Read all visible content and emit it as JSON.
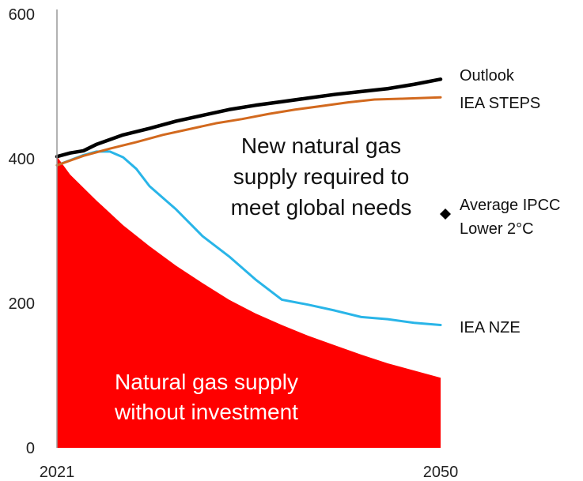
{
  "chart_data": {
    "type": "line",
    "x_range": [
      2021,
      2050
    ],
    "ylim": [
      0,
      600
    ],
    "y_ticks": [
      "0",
      "200",
      "400",
      "600"
    ],
    "x_ticks": [
      "2021",
      "2050"
    ],
    "grid": false,
    "series": [
      {
        "name": "Outlook",
        "color": "#000000",
        "x": [
          2021,
          2022,
          2023,
          2024,
          2026,
          2028,
          2030,
          2032,
          2034,
          2036,
          2038,
          2040,
          2042,
          2044,
          2046,
          2048,
          2050
        ],
        "y": [
          403,
          408,
          411,
          420,
          433,
          442,
          452,
          460,
          468,
          474,
          479,
          484,
          489,
          493,
          497,
          503,
          510
        ]
      },
      {
        "name": "IEA STEPS",
        "color": "#d2691e",
        "x": [
          2021,
          2023,
          2025,
          2027,
          2029,
          2031,
          2033,
          2035,
          2037,
          2039,
          2041,
          2043,
          2045,
          2047,
          2050
        ],
        "y": [
          391,
          404,
          414,
          423,
          433,
          441,
          449,
          455,
          462,
          468,
          473,
          478,
          482,
          483,
          485
        ]
      },
      {
        "name": "IEA NZE",
        "color": "#29b5e8",
        "x": [
          2021,
          2023,
          2024,
          2025,
          2026,
          2027,
          2028,
          2030,
          2032,
          2034,
          2036,
          2038,
          2040,
          2042,
          2044,
          2046,
          2048,
          2050
        ],
        "y": [
          391,
          405,
          410,
          410,
          402,
          386,
          362,
          330,
          293,
          265,
          233,
          205,
          198,
          190,
          181,
          178,
          173,
          170
        ]
      }
    ],
    "area": {
      "label": "Natural gas supply without investment",
      "color": "#ff0000",
      "x": [
        2021,
        2022,
        2024,
        2026,
        2028,
        2030,
        2032,
        2034,
        2036,
        2038,
        2040,
        2042,
        2044,
        2046,
        2048,
        2050
      ],
      "y": [
        403,
        378,
        342,
        308,
        279,
        252,
        228,
        205,
        186,
        170,
        155,
        142,
        129,
        117,
        107,
        97
      ]
    },
    "markers": [
      {
        "label_lines": [
          "Average IPCC",
          "Lower 2°C"
        ],
        "x": 2050,
        "y": 325,
        "shape": "diamond"
      }
    ],
    "annotations": {
      "gap_lines": [
        "New natural gas",
        "supply required to",
        "meet global needs"
      ],
      "area_lines": [
        "Natural gas supply",
        "without investment"
      ]
    }
  }
}
